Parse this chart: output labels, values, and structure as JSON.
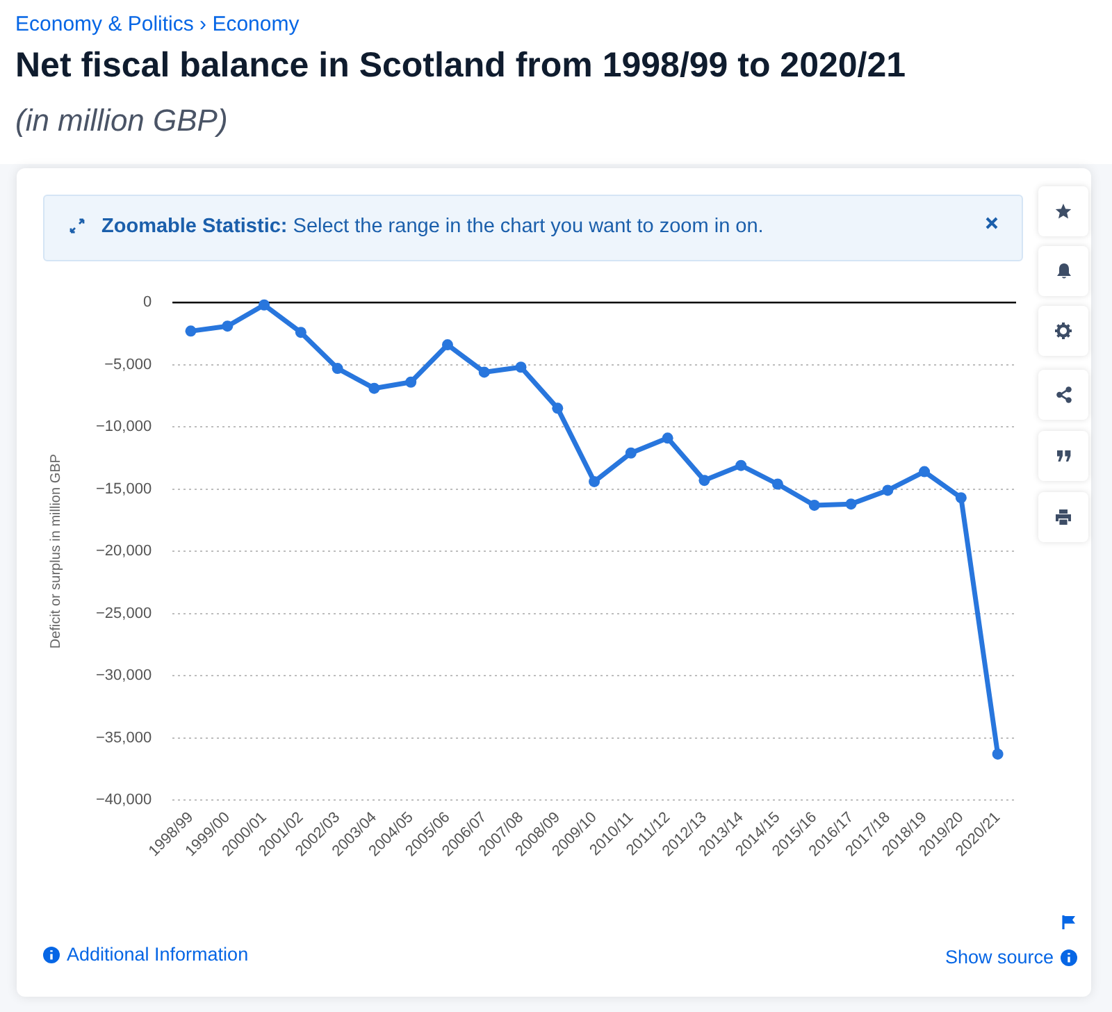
{
  "chart_data": {
    "type": "line",
    "title": "Net fiscal balance in Scotland from 1998/99 to 2020/21",
    "subtitle": "(in million GBP)",
    "ylabel": "Deficit or surplus in million GBP",
    "annotations": [
      "Economy & Politics › Economy",
      "Zoomable Statistic:",
      "Select the range in the chart you want to zoom in on.",
      "Additional Information",
      "Show source"
    ],
    "categories": [
      "1998/99",
      "1999/00",
      "2000/01",
      "2001/02",
      "2002/03",
      "2003/04",
      "2004/05",
      "2005/06",
      "2006/07",
      "2007/08",
      "2008/09",
      "2009/10",
      "2010/11",
      "2011/12",
      "2012/13",
      "2013/14",
      "2014/15",
      "2015/16",
      "2016/17",
      "2017/18",
      "2018/19",
      "2019/20",
      "2020/21"
    ],
    "values": [
      -2300,
      -1900,
      -200,
      -2400,
      -5300,
      -6900,
      -6400,
      -3400,
      -5600,
      -5200,
      -8500,
      -14400,
      -12100,
      -10900,
      -14300,
      -13100,
      -14600,
      -16300,
      -16200,
      -15100,
      -13600,
      -15700,
      -36300
    ],
    "color": "#2876dd",
    "marker": "circle",
    "line_style": "solid",
    "grid": "y",
    "ylim": [
      -40000,
      0
    ],
    "yticks": [
      {
        "value": -40000,
        "label": "−40,000"
      },
      {
        "value": -35000,
        "label": "−35,000"
      },
      {
        "value": -30000,
        "label": "−30,000"
      },
      {
        "value": -25000,
        "label": "−25,000"
      },
      {
        "value": -20000,
        "label": "−20,000"
      },
      {
        "value": -15000,
        "label": "−15,000"
      },
      {
        "value": -10000,
        "label": "−10,000"
      },
      {
        "value": -5000,
        "label": "−5,000"
      },
      0
    ],
    "ref_lines": [
      {
        "axis": "y",
        "value": 0,
        "color": "#000000"
      }
    ]
  }
}
